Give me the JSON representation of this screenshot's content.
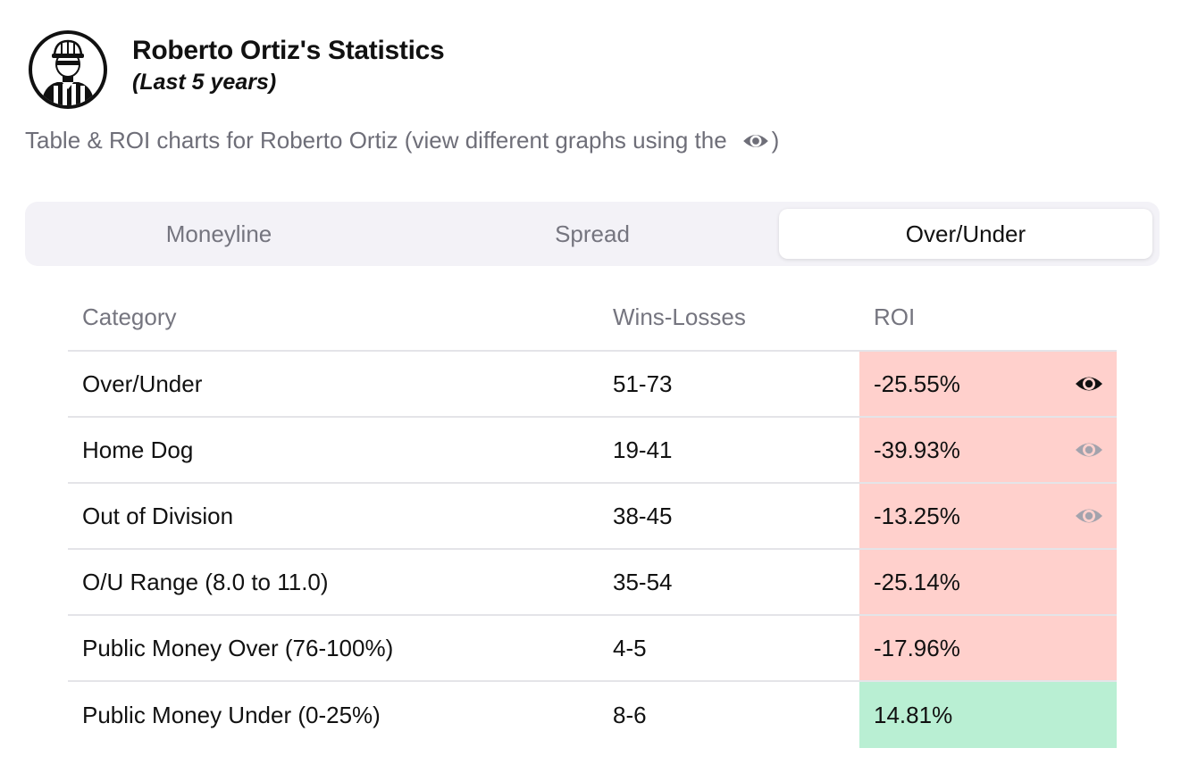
{
  "header": {
    "title": "Roberto Ortiz's Statistics",
    "subtitle": "(Last 5 years)",
    "avatar_icon": "referee-avatar-icon"
  },
  "description": {
    "text": "Table & ROI charts for Roberto Ortiz (view different graphs using the",
    "icon": "eye-icon",
    "suffix": ")"
  },
  "tabs": [
    {
      "label": "Moneyline",
      "active": false
    },
    {
      "label": "Spread",
      "active": false
    },
    {
      "label": "Over/Under",
      "active": true
    }
  ],
  "table": {
    "headers": {
      "category": "Category",
      "wins_losses": "Wins-Losses",
      "roi": "ROI"
    },
    "rows": [
      {
        "category": "Over/Under",
        "wins_losses": "51-73",
        "roi": "-25.55%",
        "roi_status": "negative",
        "eye": "active"
      },
      {
        "category": "Home Dog",
        "wins_losses": "19-41",
        "roi": "-39.93%",
        "roi_status": "negative",
        "eye": "inactive"
      },
      {
        "category": "Out of Division",
        "wins_losses": "38-45",
        "roi": "-13.25%",
        "roi_status": "negative",
        "eye": "inactive"
      },
      {
        "category": "O/U Range (8.0 to 11.0)",
        "wins_losses": "35-54",
        "roi": "-25.14%",
        "roi_status": "negative",
        "eye": "none"
      },
      {
        "category": "Public Money Over (76-100%)",
        "wins_losses": "4-5",
        "roi": "-17.96%",
        "roi_status": "negative",
        "eye": "none"
      },
      {
        "category": "Public Money Under (0-25%)",
        "wins_losses": "8-6",
        "roi": "14.81%",
        "roi_status": "positive",
        "eye": "none"
      }
    ]
  },
  "colors": {
    "negative_roi_bg": "#ffd0cc",
    "positive_roi_bg": "#b9efd3",
    "eye_active": "#111111",
    "eye_inactive": "#a3a3ad",
    "muted_text": "#75757f"
  }
}
